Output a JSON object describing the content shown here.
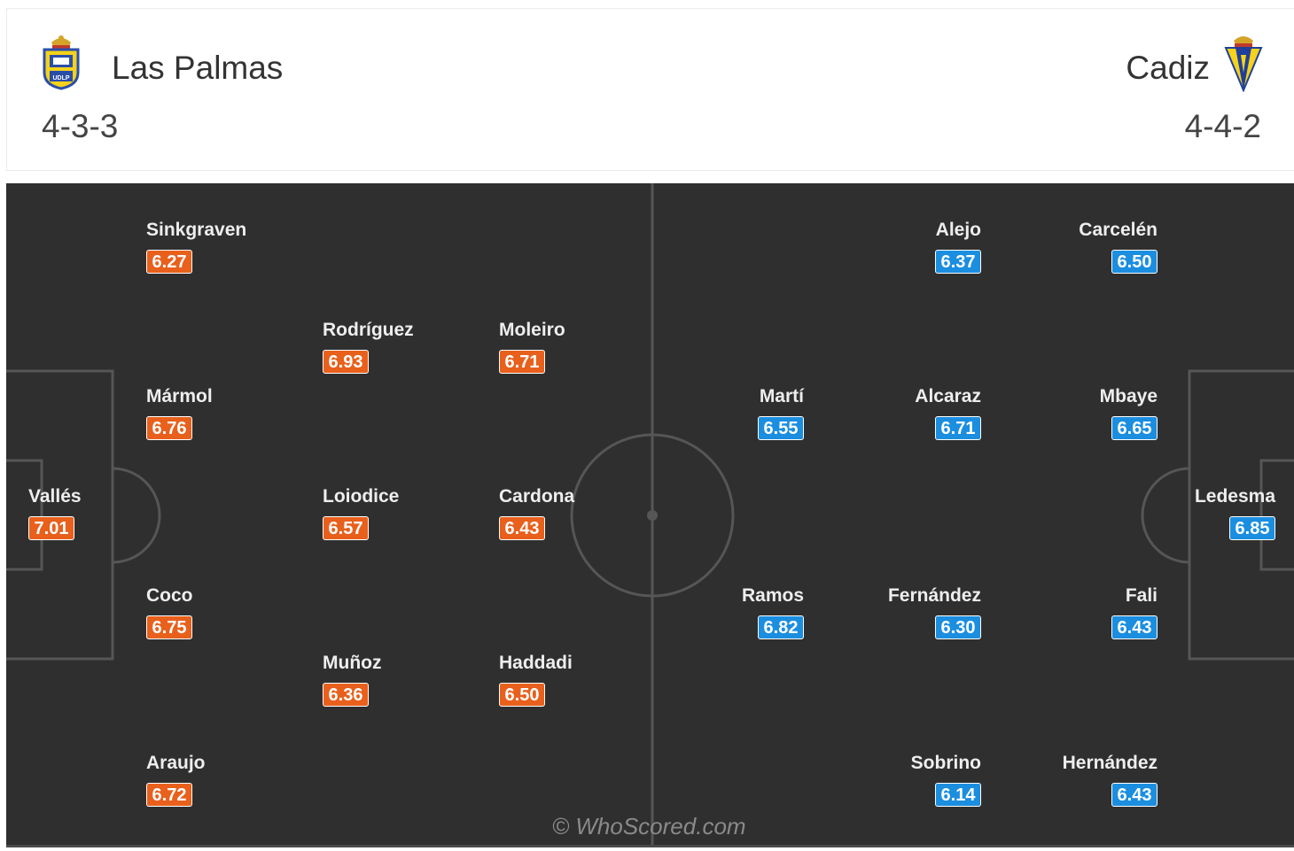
{
  "header": {
    "home": {
      "name": "Las Palmas",
      "formation": "4-3-3",
      "crest_icon": "las-palmas-crest-icon"
    },
    "away": {
      "name": "Cadiz",
      "formation": "4-4-2",
      "crest_icon": "cadiz-crest-icon"
    }
  },
  "colors": {
    "home_rating": "#e8601c",
    "away_rating": "#1b8ee0",
    "pitch": "#2f2f2f",
    "pitch_lines": "#565656"
  },
  "home_players": [
    {
      "name": "Vallés",
      "rating": "7.01"
    },
    {
      "name": "Sinkgraven",
      "rating": "6.27"
    },
    {
      "name": "Mármol",
      "rating": "6.76"
    },
    {
      "name": "Coco",
      "rating": "6.75"
    },
    {
      "name": "Araujo",
      "rating": "6.72"
    },
    {
      "name": "Rodríguez",
      "rating": "6.93"
    },
    {
      "name": "Loiodice",
      "rating": "6.57"
    },
    {
      "name": "Muñoz",
      "rating": "6.36"
    },
    {
      "name": "Moleiro",
      "rating": "6.71"
    },
    {
      "name": "Cardona",
      "rating": "6.43"
    },
    {
      "name": "Haddadi",
      "rating": "6.50"
    }
  ],
  "away_players": [
    {
      "name": "Ledesma",
      "rating": "6.85"
    },
    {
      "name": "Carcelén",
      "rating": "6.50"
    },
    {
      "name": "Mbaye",
      "rating": "6.65"
    },
    {
      "name": "Fali",
      "rating": "6.43"
    },
    {
      "name": "Hernández",
      "rating": "6.43"
    },
    {
      "name": "Alejo",
      "rating": "6.37"
    },
    {
      "name": "Alcaraz",
      "rating": "6.71"
    },
    {
      "name": "Fernández",
      "rating": "6.30"
    },
    {
      "name": "Sobrino",
      "rating": "6.14"
    },
    {
      "name": "Martí",
      "rating": "6.55"
    },
    {
      "name": "Ramos",
      "rating": "6.82"
    }
  ],
  "watermark": "© WhoScored.com"
}
